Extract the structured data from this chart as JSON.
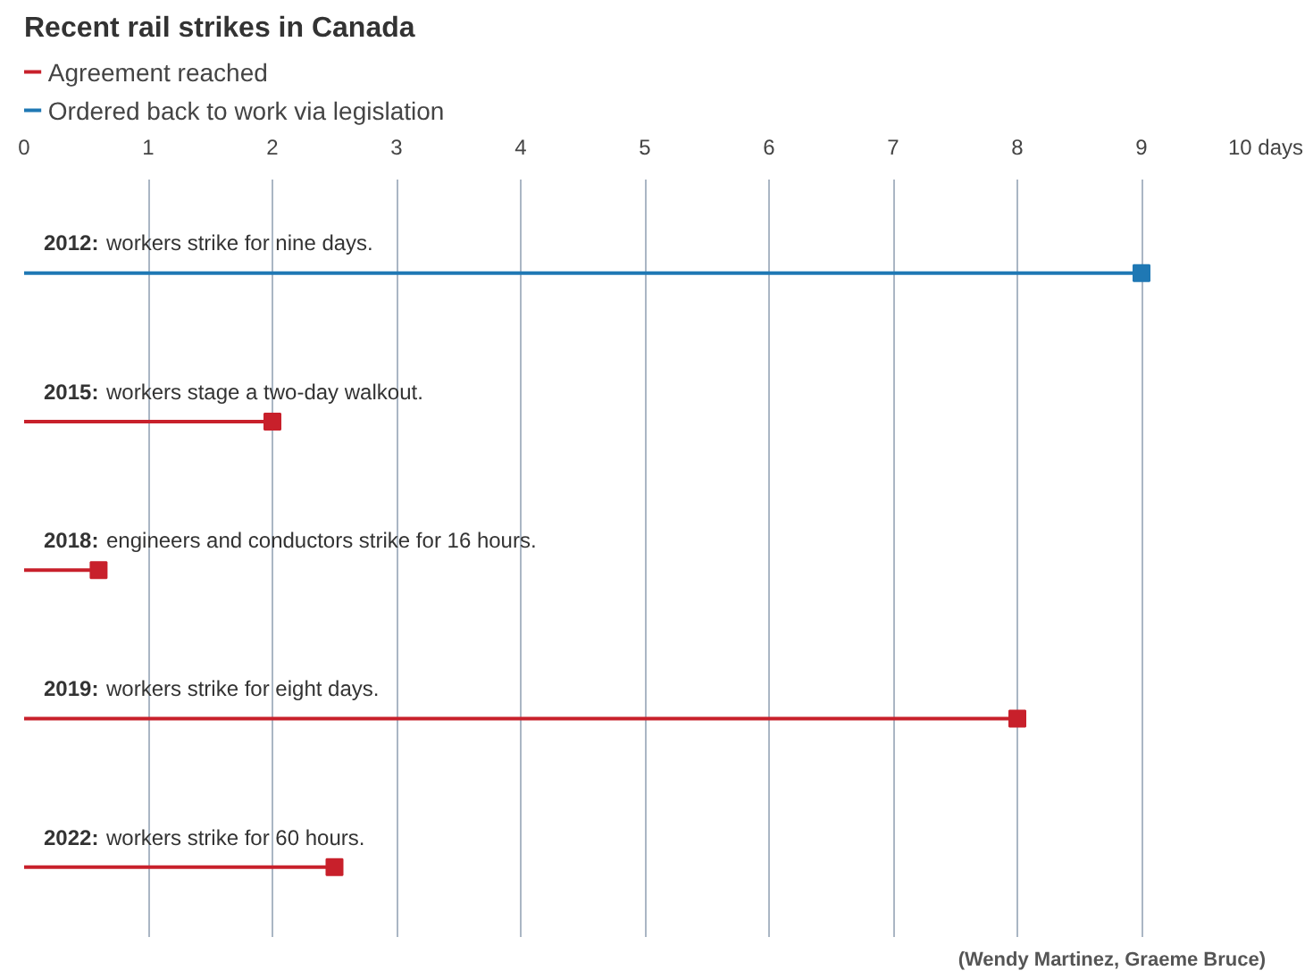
{
  "chart_data": {
    "type": "lollipop",
    "orientation": "horizontal",
    "title": "Recent rail strikes in Canada",
    "categories": [
      "2012: workers strike for nine days.",
      "2015: workers stage a two-day walkout.",
      "2018: engineers and conductors strike for 16 hours.",
      "2019: workers strike for eight days.",
      "2022: workers strike for 60 hours."
    ],
    "series": [
      {
        "name": "Agreement reached",
        "color": "#c8202b",
        "values": [
          null,
          2,
          0.6,
          8,
          2.5
        ]
      },
      {
        "name": "Ordered back to work via legislation",
        "color": "#1f78b4",
        "values": [
          9,
          null,
          null,
          null,
          null
        ]
      }
    ],
    "xlim": [
      0,
      10
    ],
    "xticks": [
      0,
      1,
      2,
      3,
      4,
      5,
      6,
      7,
      8,
      9,
      {
        "value": 10,
        "label": "10 days"
      }
    ],
    "grid": "x",
    "legend": "top left",
    "marker": "square",
    "annotations": [
      "(Wendy Martinez, Graeme Bruce)"
    ]
  }
}
